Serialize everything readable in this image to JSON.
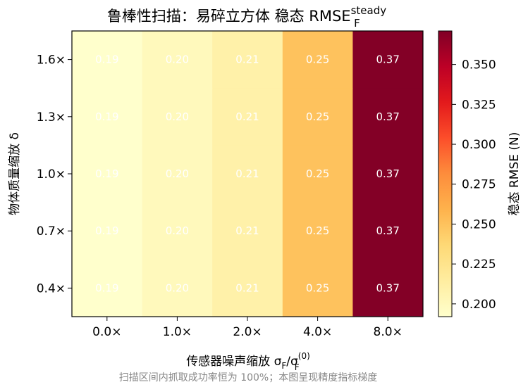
{
  "colors": {
    "scale": [
      "#ffffcc",
      "#ffeda0",
      "#fed976",
      "#feb24c",
      "#fd8d3c",
      "#fc4e2a",
      "#e31a1c",
      "#bd0026",
      "#800026"
    ],
    "axis": "#000000",
    "cell_text": "#ffffff",
    "note": "#888888"
  },
  "chart_data": {
    "type": "heatmap",
    "title": {
      "main": "鲁棒性扫描：易碎立方体  稳态 RMSE",
      "sub": "F",
      "sup": "steady"
    },
    "xlabel": {
      "main": "传感器噪声缩放 σ",
      "sub1": "F",
      "mid": "/σ",
      "sub2": "F",
      "sup2": "(0)"
    },
    "ylabel": "物体质量缩放 δ",
    "x_categories": [
      "0.0×",
      "1.0×",
      "2.0×",
      "4.0×",
      "8.0×"
    ],
    "y_categories": [
      "0.4×",
      "0.7×",
      "1.0×",
      "1.3×",
      "1.6×"
    ],
    "z": [
      [
        0.19,
        0.2,
        0.21,
        0.25,
        0.37
      ],
      [
        0.19,
        0.2,
        0.21,
        0.25,
        0.37
      ],
      [
        0.19,
        0.2,
        0.21,
        0.25,
        0.37
      ],
      [
        0.19,
        0.2,
        0.21,
        0.25,
        0.37
      ],
      [
        0.19,
        0.2,
        0.21,
        0.25,
        0.37
      ]
    ],
    "cell_labels": [
      [
        "0.19",
        "0.20",
        "0.21",
        "0.25",
        "0.37"
      ],
      [
        "0.19",
        "0.20",
        "0.21",
        "0.25",
        "0.37"
      ],
      [
        "0.19",
        "0.20",
        "0.21",
        "0.25",
        "0.37"
      ],
      [
        "0.19",
        "0.20",
        "0.21",
        "0.25",
        "0.37"
      ],
      [
        "0.19",
        "0.20",
        "0.21",
        "0.25",
        "0.37"
      ]
    ],
    "colorbar": {
      "label": "稳态 RMSE (N)",
      "range": [
        0.192,
        0.371
      ],
      "ticks": [
        0.2,
        0.225,
        0.25,
        0.275,
        0.3,
        0.325,
        0.35
      ],
      "tick_labels": [
        "0.200",
        "0.225",
        "0.250",
        "0.275",
        "0.300",
        "0.325",
        "0.350"
      ]
    }
  },
  "footnote": "扫描区间内抓取成功率恒为 100%；本图呈现精度指标梯度"
}
